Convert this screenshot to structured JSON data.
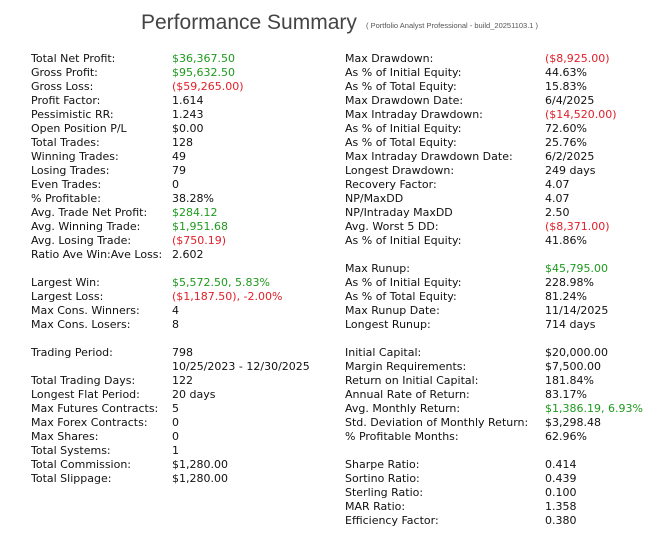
{
  "header": {
    "title": "Performance Summary",
    "subtitle": "( Portfolio Analyst Professional - build_20251103.1 )"
  },
  "colors": {
    "positive": "#1e9a1e",
    "negative": "#e0202a"
  },
  "left": [
    {
      "label": "Total Net Profit:",
      "value": "$36,367.50",
      "tone": "pos"
    },
    {
      "label": "Gross Profit:",
      "value": "$95,632.50",
      "tone": "pos"
    },
    {
      "label": "Gross Loss:",
      "value": "($59,265.00)",
      "tone": "neg"
    },
    {
      "label": "Profit Factor:",
      "value": "1.614"
    },
    {
      "label": "Pessimistic RR:",
      "value": "1.243"
    },
    {
      "label": "Open Position P/L",
      "value": "$0.00"
    },
    {
      "label": "Total Trades:",
      "value": "128"
    },
    {
      "label": "Winning Trades:",
      "value": "49"
    },
    {
      "label": "Losing Trades:",
      "value": "79"
    },
    {
      "label": "Even Trades:",
      "value": "0"
    },
    {
      "label": "% Profitable:",
      "value": "38.28%"
    },
    {
      "label": "Avg. Trade Net Profit:",
      "value": "$284.12",
      "tone": "pos"
    },
    {
      "label": "Avg. Winning Trade:",
      "value": "$1,951.68",
      "tone": "pos"
    },
    {
      "label": "Avg. Losing Trade:",
      "value": "($750.19)",
      "tone": "neg"
    },
    {
      "label": "Ratio Ave Win:Ave Loss:",
      "value": "2.602"
    },
    null,
    {
      "label": "Largest Win:",
      "value": "$5,572.50, 5.83%",
      "tone": "pos"
    },
    {
      "label": "Largest Loss:",
      "value": "($1,187.50), -2.00%",
      "tone": "neg"
    },
    {
      "label": "Max Cons. Winners:",
      "value": "4"
    },
    {
      "label": "Max Cons. Losers:",
      "value": "8"
    },
    null,
    {
      "label": "Trading Period:",
      "value": "798"
    },
    {
      "label": "",
      "value": "10/25/2023 - 12/30/2025"
    },
    {
      "label": "Total Trading Days:",
      "value": "122"
    },
    {
      "label": "Longest Flat Period:",
      "value": "20 days"
    },
    {
      "label": "Max Futures Contracts:",
      "value": "5"
    },
    {
      "label": "Max Forex Contracts:",
      "value": "0"
    },
    {
      "label": "Max Shares:",
      "value": "0"
    },
    {
      "label": "Total Systems:",
      "value": "1"
    },
    {
      "label": "Total Commission:",
      "value": "$1,280.00"
    },
    {
      "label": "Total Slippage:",
      "value": "$1,280.00"
    }
  ],
  "right": [
    {
      "label": "Max Drawdown:",
      "value": "($8,925.00)",
      "tone": "neg"
    },
    {
      "label": "As % of Initial Equity:",
      "value": "44.63%"
    },
    {
      "label": "As % of Total Equity:",
      "value": "15.83%"
    },
    {
      "label": "Max Drawdown Date:",
      "value": "6/4/2025"
    },
    {
      "label": "Max Intraday Drawdown:",
      "value": "($14,520.00)",
      "tone": "neg"
    },
    {
      "label": "As % of Initial Equity:",
      "value": "72.60%"
    },
    {
      "label": "As % of Total Equity:",
      "value": "25.76%"
    },
    {
      "label": "Max Intraday Drawdown Date:",
      "value": "6/2/2025"
    },
    {
      "label": "Longest Drawdown:",
      "value": "249 days"
    },
    {
      "label": "Recovery Factor:",
      "value": "4.07"
    },
    {
      "label": "NP/MaxDD",
      "value": "4.07"
    },
    {
      "label": "NP/Intraday MaxDD",
      "value": "2.50"
    },
    {
      "label": "Avg. Worst 5 DD:",
      "value": "($8,371.00)",
      "tone": "neg"
    },
    {
      "label": "As % of Initial Equity:",
      "value": "41.86%"
    },
    null,
    {
      "label": "Max Runup:",
      "value": "$45,795.00",
      "tone": "pos"
    },
    {
      "label": "As % of Initial Equity:",
      "value": "228.98%"
    },
    {
      "label": "As % of Total Equity:",
      "value": "81.24%"
    },
    {
      "label": "Max Runup Date:",
      "value": "11/14/2025"
    },
    {
      "label": "Longest Runup:",
      "value": "714 days"
    },
    null,
    {
      "label": "Initial Capital:",
      "value": "$20,000.00"
    },
    {
      "label": "Margin Requirements:",
      "value": "$7,500.00"
    },
    {
      "label": "Return on Initial Capital:",
      "value": "181.84%"
    },
    {
      "label": "Annual Rate of Return:",
      "value": "83.17%"
    },
    {
      "label": "Avg. Monthly Return:",
      "value": "$1,386.19, 6.93%",
      "tone": "pos"
    },
    {
      "label": "Std. Deviation of Monthly Return:",
      "value": "$3,298.48"
    },
    {
      "label": "% Profitable Months:",
      "value": "62.96%"
    },
    null,
    {
      "label": "Sharpe Ratio:",
      "value": "0.414"
    },
    {
      "label": "Sortino Ratio:",
      "value": "0.439"
    },
    {
      "label": "Sterling Ratio:",
      "value": "0.100"
    },
    {
      "label": "MAR Ratio:",
      "value": "1.358"
    },
    {
      "label": "Efficiency Factor:",
      "value": "0.380"
    }
  ]
}
